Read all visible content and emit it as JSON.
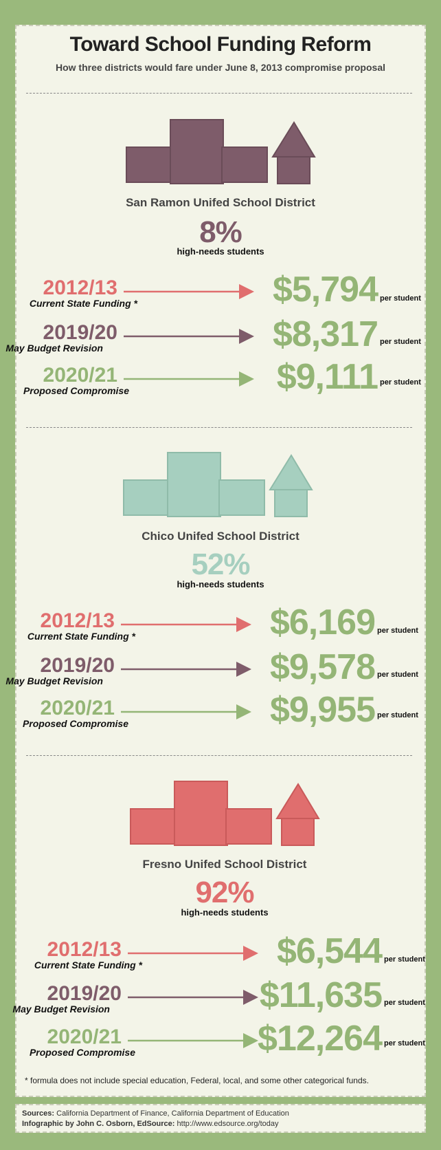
{
  "title": "Toward School Funding Reform",
  "subtitle": "How three districts would fare under June 8, 2013 compromise proposal",
  "per_label": "per student",
  "high_needs_label": "high-needs students",
  "colors": {
    "y2012": "#e06e6e",
    "y2019": "#7e5c6a",
    "y2020": "#94b576",
    "amount": "#94b576"
  },
  "districts": [
    {
      "name": "San Ramon Unifed School District",
      "pct": "8%",
      "color": "#7e5c6a",
      "rows": [
        {
          "year": "2012/13",
          "label": "Current State Funding *",
          "amount": "$5,794"
        },
        {
          "year": "2019/20",
          "label": "May Budget Revision",
          "amount": "$8,317"
        },
        {
          "year": "2020/21",
          "label": "Proposed Compromise",
          "amount": "$9,111"
        }
      ]
    },
    {
      "name": "Chico Unifed School District",
      "pct": "52%",
      "color": "#a6cfbf",
      "rows": [
        {
          "year": "2012/13",
          "label": "Current State Funding *",
          "amount": "$6,169"
        },
        {
          "year": "2019/20",
          "label": "May Budget Revision",
          "amount": "$9,578"
        },
        {
          "year": "2020/21",
          "label": "Proposed Compromise",
          "amount": "$9,955"
        }
      ]
    },
    {
      "name": "Fresno Unifed School District",
      "pct": "92%",
      "color": "#e06e6e",
      "rows": [
        {
          "year": "2012/13",
          "label": "Current State Funding *",
          "amount": "$6,544"
        },
        {
          "year": "2019/20",
          "label": "May Budget Revision",
          "amount": "$11,635"
        },
        {
          "year": "2020/21",
          "label": "Proposed Compromise",
          "amount": "$12,264"
        }
      ]
    }
  ],
  "footnote": "* formula does not include special education, Federal, local, and some other categorical funds.",
  "sources_label": "Sources:",
  "sources_text": "California Department of Finance, California Department of Education",
  "credit_label": "Infographic by John C. Osborn, EdSource:",
  "credit_text": "http://www.edsource.org/today"
}
